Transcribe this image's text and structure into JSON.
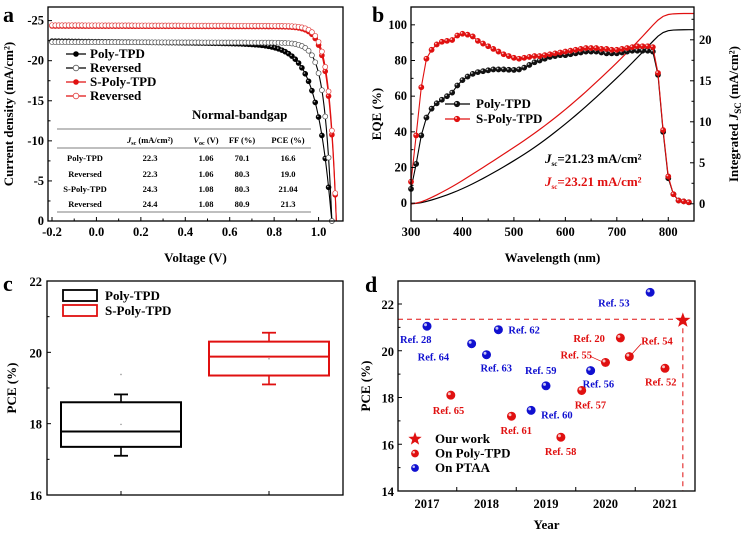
{
  "chart_data": [
    {
      "panel": "a",
      "type": "line",
      "xlabel": "Voltage (V)",
      "ylabel": "Current density (mA/cm2)",
      "xlim": [
        -0.2,
        1.11
      ],
      "ylim": [
        -26.7,
        0
      ],
      "xticks": [
        "-0.2",
        "0.0",
        "0.2",
        "0.4",
        "0.6",
        "0.8",
        "1.0"
      ],
      "xtick_values": [
        -0.2,
        0.0,
        0.2,
        0.4,
        0.6,
        0.8,
        1.0
      ],
      "yticks": [
        "-25",
        "-20",
        "-15",
        "-10",
        "-5",
        "0"
      ],
      "ytick_values": [
        -25,
        -20,
        -15,
        -10,
        -5,
        0
      ],
      "annotation": "Normal-bandgap",
      "series": [
        {
          "name": "Poly-TPD",
          "color": "#000000",
          "marker": "filled-circle",
          "jsc": 22.3,
          "voc": 1.06,
          "ff": 70.1,
          "pce": 16.6
        },
        {
          "name": "Reversed",
          "color": "#000000",
          "marker": "open-circle",
          "jsc": 22.3,
          "voc": 1.06,
          "ff": 80.3,
          "pce": 19.0
        },
        {
          "name": "S-Poly-TPD",
          "color": "#e01010",
          "marker": "filled-circle",
          "jsc": 24.3,
          "voc": 1.08,
          "ff": 80.3,
          "pce": 21.04
        },
        {
          "name": "Reversed",
          "color": "#e01010",
          "marker": "open-circle",
          "jsc": 24.4,
          "voc": 1.08,
          "ff": 80.9,
          "pce": 21.3
        }
      ],
      "table": {
        "headers": [
          "",
          "Jsc (mA/cm2)",
          "Voc (V)",
          "FF (%)",
          "PCE (%)"
        ],
        "header_parts": [
          {
            "main": "",
            "sub": "",
            "rest": ""
          },
          {
            "main": "J",
            "sub": "sc",
            "rest": " (mA/cm²)"
          },
          {
            "main": "V",
            "sub": "oc",
            "rest": " (V)"
          },
          {
            "main": "",
            "sub": "",
            "rest": "FF (%)"
          },
          {
            "main": "",
            "sub": "",
            "rest": "PCE (%)"
          }
        ],
        "rows": [
          [
            "Poly-TPD",
            "22.3",
            "1.06",
            "70.1",
            "16.6"
          ],
          [
            "Reversed",
            "22.3",
            "1.06",
            "80.3",
            "19.0"
          ],
          [
            "S-Poly-TPD",
            "24.3",
            "1.08",
            "80.3",
            "21.04"
          ],
          [
            "Reversed",
            "24.4",
            "1.08",
            "80.9",
            "21.3"
          ]
        ]
      }
    },
    {
      "panel": "b",
      "type": "line",
      "xlabel": "Wavelength (nm)",
      "ylabel": "EQE (%)",
      "y2label": "Integrated JSC (mA/cm2)",
      "xlim": [
        300,
        850
      ],
      "ylim": [
        -10,
        110
      ],
      "y2lim": [
        -2.1,
        24.0
      ],
      "xticks": [
        "300",
        "400",
        "500",
        "600",
        "700",
        "800"
      ],
      "xtick_values": [
        300,
        400,
        500,
        600,
        700,
        800
      ],
      "yticks": [
        "0",
        "20",
        "40",
        "60",
        "80",
        "100"
      ],
      "ytick_values": [
        0,
        20,
        40,
        60,
        80,
        100
      ],
      "y2ticks": [
        "0",
        "5",
        "10",
        "15",
        "20"
      ],
      "y2tick_values": [
        0,
        5,
        10,
        15,
        20
      ],
      "x": [
        300,
        310,
        320,
        330,
        340,
        350,
        360,
        370,
        380,
        390,
        400,
        410,
        420,
        430,
        440,
        450,
        460,
        470,
        480,
        490,
        500,
        510,
        520,
        530,
        540,
        550,
        560,
        570,
        580,
        590,
        600,
        610,
        620,
        630,
        640,
        650,
        660,
        670,
        680,
        690,
        700,
        710,
        720,
        730,
        740,
        750,
        760,
        770,
        780,
        790,
        800,
        810,
        820,
        830,
        840
      ],
      "series": [
        {
          "name": "Poly-TPD",
          "color": "#000000",
          "axis": "left",
          "values": [
            8,
            22,
            38,
            48,
            53,
            56,
            58,
            60,
            62,
            66,
            69,
            71,
            72.5,
            73.5,
            74,
            74.5,
            75,
            75,
            75,
            74.8,
            74.7,
            75,
            76,
            77.5,
            79,
            80,
            81,
            82,
            82.5,
            83,
            83,
            83.5,
            84,
            84.5,
            85,
            85,
            85,
            84.5,
            84,
            84,
            84,
            84.5,
            85,
            85.5,
            85.5,
            85.5,
            85.5,
            85,
            72,
            40,
            14,
            5,
            1.5,
            1,
            0.5
          ]
        },
        {
          "name": "S-Poly-TPD",
          "color": "#e01010",
          "axis": "left",
          "values": [
            12,
            38,
            65,
            81,
            86,
            89,
            90.5,
            91,
            91.5,
            94,
            95,
            94.5,
            93.5,
            91,
            89.5,
            88,
            86.5,
            85,
            83.5,
            82.5,
            81.5,
            81,
            81.5,
            82,
            82.5,
            82.5,
            83,
            83.5,
            84,
            84.5,
            85,
            85.5,
            86,
            86.5,
            87,
            87,
            87,
            86.5,
            86.5,
            86,
            86,
            86.5,
            87,
            87.5,
            88,
            88,
            88,
            87.5,
            73,
            41,
            15,
            5,
            1.5,
            1,
            0.5
          ]
        },
        {
          "name": "Integrated Poly-TPD",
          "color": "#000000",
          "axis": "right",
          "final": 21.23
        },
        {
          "name": "Integrated S-Poly-TPD",
          "color": "#e01010",
          "axis": "right",
          "final": 23.21
        }
      ],
      "annotations": [
        {
          "main": "J",
          "sub": "sc",
          "text": "=21.23 mA/cm²",
          "color": "#000000"
        },
        {
          "main": "J",
          "sub": "sc",
          "text": "=23.21 mA/cm²",
          "color": "#e01010"
        }
      ]
    },
    {
      "panel": "c",
      "type": "box",
      "ylabel": "PCE (%)",
      "ylim": [
        16,
        22
      ],
      "yticks": [
        "16",
        "18",
        "20",
        "22"
      ],
      "ytick_values": [
        16,
        18,
        20,
        22
      ],
      "series": [
        {
          "name": "Poly-TPD",
          "color": "#000000",
          "whisker_low": 17.1,
          "q1": 17.35,
          "median": 17.78,
          "q3": 18.6,
          "whisker_high": 18.82,
          "mean": 17.98,
          "outlier": 19.38
        },
        {
          "name": "S-Poly-TPD",
          "color": "#e01010",
          "whisker_low": 19.1,
          "q1": 19.35,
          "median": 19.88,
          "q3": 20.3,
          "whisker_high": 20.55,
          "mean": 19.82
        }
      ]
    },
    {
      "panel": "d",
      "type": "scatter",
      "xlabel": "Year",
      "ylabel": "PCE (%)",
      "xlim": [
        2016.55,
        2021.5
      ],
      "ylim": [
        14,
        23
      ],
      "xticks": [
        "2017",
        "2018",
        "2019",
        "2020",
        "2021"
      ],
      "xtick_values": [
        2017,
        2018,
        2019,
        2020,
        2021
      ],
      "yticks": [
        "14",
        "16",
        "18",
        "20",
        "22"
      ],
      "ytick_values": [
        14,
        16,
        18,
        20,
        22
      ],
      "reference_line": 21.35,
      "legend": [
        {
          "label": "Our work",
          "marker": "star",
          "color": "#e01010"
        },
        {
          "label": "On Poly-TPD",
          "marker": "circle",
          "color": "#e01010"
        },
        {
          "label": "On PTAA",
          "marker": "circle",
          "color": "#1010d0"
        }
      ],
      "points": [
        {
          "label": "Ref. 28",
          "group": "PTAA",
          "x": 2017.0,
          "y": 21.05
        },
        {
          "label": "Ref. 64",
          "group": "PTAA",
          "x": 2017.75,
          "y": 20.3
        },
        {
          "label": "Ref. 63",
          "group": "PTAA",
          "x": 2018.0,
          "y": 19.83
        },
        {
          "label": "Ref. 62",
          "group": "PTAA",
          "x": 2018.2,
          "y": 20.9
        },
        {
          "label": "Ref. 59",
          "group": "PTAA",
          "x": 2019.0,
          "y": 18.5
        },
        {
          "label": "Ref. 60",
          "group": "PTAA",
          "x": 2018.75,
          "y": 17.45
        },
        {
          "label": "Ref. 56",
          "group": "PTAA",
          "x": 2019.75,
          "y": 19.15
        },
        {
          "label": "Ref. 53",
          "group": "PTAA",
          "x": 2020.75,
          "y": 22.5
        },
        {
          "label": "Ref. 65",
          "group": "Poly-TPD",
          "x": 2017.4,
          "y": 18.1
        },
        {
          "label": "Ref. 61",
          "group": "Poly-TPD",
          "x": 2018.42,
          "y": 17.2
        },
        {
          "label": "Ref. 58",
          "group": "Poly-TPD",
          "x": 2019.25,
          "y": 16.3
        },
        {
          "label": "Ref. 57",
          "group": "Poly-TPD",
          "x": 2019.6,
          "y": 18.3
        },
        {
          "label": "Ref. 55",
          "group": "Poly-TPD",
          "x": 2020.0,
          "y": 19.5
        },
        {
          "label": "Ref. 20",
          "group": "Poly-TPD",
          "x": 2020.25,
          "y": 20.55
        },
        {
          "label": "Ref. 54",
          "group": "Poly-TPD",
          "x": 2020.4,
          "y": 19.75
        },
        {
          "label": "Ref. 52",
          "group": "Poly-TPD",
          "x": 2021.0,
          "y": 19.25
        },
        {
          "label": "Our work",
          "group": "Our work",
          "x": 2021.3,
          "y": 21.3
        }
      ]
    }
  ],
  "panel_labels": [
    "a",
    "b",
    "c",
    "d"
  ]
}
